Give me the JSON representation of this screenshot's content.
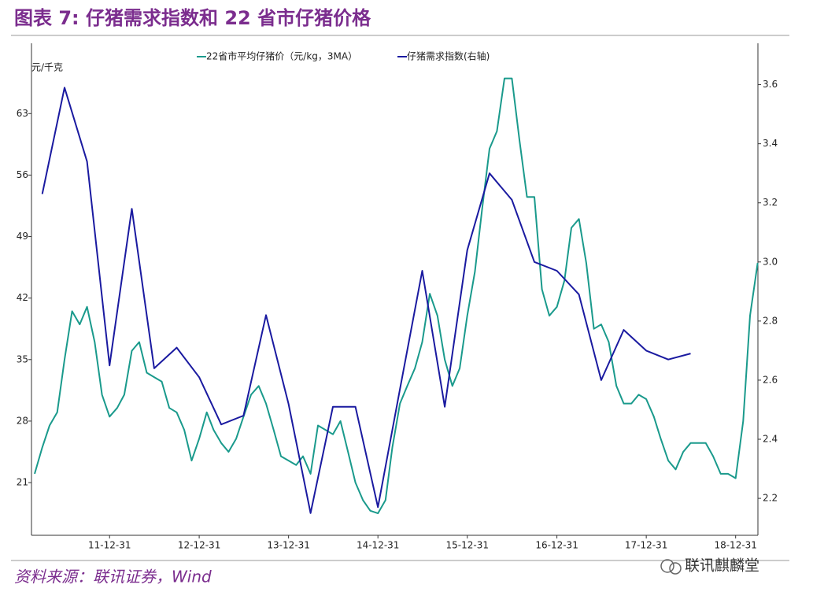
{
  "chart_data": {
    "type": "line",
    "title": "图表 7: 仔猪需求指数和 22 省市仔猪价格",
    "y_label": "元/千克",
    "source": "资料来源：联讯证券，Wind",
    "watermark": "联讯麒麟堂",
    "xlim": [
      "11-02-15",
      "19-04-01"
    ],
    "xticks": [
      "11-12-31",
      "12-12-31",
      "13-12-31",
      "14-12-31",
      "15-12-31",
      "16-12-31",
      "17-12-31",
      "18-12-31"
    ],
    "ylim": [
      15,
      71
    ],
    "yticks": [
      21,
      28,
      35,
      42,
      49,
      56,
      63
    ],
    "y2lim": [
      2.075,
      3.74
    ],
    "y2ticks": [
      2.2,
      2.4,
      2.6,
      2.8,
      {
        "value": 3,
        "label": "3.0"
      },
      3.2,
      3.4,
      3.6
    ],
    "grid": false,
    "legend": "top",
    "series": [
      {
        "name": "22省市平均仔猪价（元/kg，3MA）",
        "color": "#1a9a8c",
        "x": [
          "11-02-28",
          "11-03-31",
          "11-04-30",
          "11-05-31",
          "11-06-30",
          "11-07-31",
          "11-08-31",
          "11-09-30",
          "11-10-31",
          "11-11-30",
          "11-12-31",
          "12-01-31",
          "12-02-29",
          "12-03-31",
          "12-04-30",
          "12-05-31",
          "12-06-30",
          "12-07-31",
          "12-08-31",
          "12-09-30",
          "12-10-31",
          "12-11-30",
          "12-12-31",
          "13-01-31",
          "13-02-28",
          "13-03-31",
          "13-04-30",
          "13-05-31",
          "13-06-30",
          "13-07-31",
          "13-08-31",
          "13-09-30",
          "13-10-31",
          "13-11-30",
          "13-12-31",
          "14-01-31",
          "14-02-28",
          "14-03-31",
          "14-04-30",
          "14-05-31",
          "14-06-30",
          "14-07-31",
          "14-08-31",
          "14-09-30",
          "14-10-31",
          "14-11-30",
          "14-12-31",
          "15-01-31",
          "15-02-28",
          "15-03-31",
          "15-04-30",
          "15-05-31",
          "15-06-30",
          "15-07-31",
          "15-08-31",
          "15-09-30",
          "15-10-31",
          "15-11-30",
          "15-12-31",
          "16-01-31",
          "16-02-29",
          "16-03-31",
          "16-04-30",
          "16-05-31",
          "16-06-30",
          "16-07-31",
          "16-08-31",
          "16-09-30",
          "16-10-31",
          "16-11-30",
          "16-12-31",
          "17-01-31",
          "17-02-28",
          "17-03-31",
          "17-04-30",
          "17-05-31",
          "17-06-30",
          "17-07-31",
          "17-08-31",
          "17-09-30",
          "17-10-31",
          "17-11-30",
          "17-12-31",
          "18-01-31",
          "18-02-28",
          "18-03-31",
          "18-04-30",
          "18-05-31",
          "18-06-30",
          "18-07-31",
          "18-08-31",
          "18-09-30",
          "18-10-31",
          "18-11-30",
          "18-12-31",
          "19-01-31",
          "19-02-28",
          "19-03-31"
        ],
        "values": [
          22,
          25,
          27.5,
          29,
          35,
          40.5,
          39,
          41,
          37,
          31,
          28.5,
          29.5,
          31,
          36,
          37,
          33.5,
          33,
          32.5,
          29.5,
          29,
          27,
          23.5,
          26,
          29,
          27,
          25.5,
          24.5,
          26,
          28.5,
          31,
          32,
          30,
          27,
          24,
          23.5,
          23,
          24,
          22,
          27.5,
          27,
          26.5,
          28,
          24.5,
          21,
          19,
          17.8,
          17.5,
          19,
          25,
          30,
          32,
          34,
          37,
          42.5,
          40,
          35,
          32,
          34,
          40,
          45,
          52,
          59,
          61,
          67,
          67,
          60,
          53.5,
          53.5,
          43,
          40,
          41,
          44,
          50,
          51,
          46,
          38.5,
          39,
          37,
          32,
          30,
          30,
          31,
          30.5,
          28.5,
          26,
          23.5,
          22.5,
          24.5,
          25.5,
          25.5,
          25.5,
          24,
          22,
          22,
          21.5,
          28,
          40,
          46
        ]
      },
      {
        "name": "仔猪需求指数(右轴)",
        "color": "#1a1aa0",
        "axis": "y2",
        "x": [
          "11-03-31",
          "11-06-30",
          "11-09-30",
          "11-12-31",
          "12-03-31",
          "12-06-30",
          "12-09-30",
          "12-12-31",
          "13-03-31",
          "13-06-30",
          "13-09-30",
          "13-12-31",
          "14-03-31",
          "14-06-30",
          "14-09-30",
          "14-12-31",
          "15-03-31",
          "15-06-30",
          "15-09-30",
          "15-12-31",
          "16-03-31",
          "16-06-30",
          "16-09-30",
          "16-12-31",
          "17-03-31",
          "17-06-30",
          "17-09-30",
          "17-12-31",
          "18-03-31",
          "18-06-30"
        ],
        "values": [
          3.23,
          3.59,
          3.34,
          2.65,
          3.18,
          2.64,
          2.71,
          2.61,
          2.45,
          2.48,
          2.82,
          2.52,
          2.15,
          2.51,
          2.51,
          2.17,
          2.57,
          2.97,
          2.51,
          3.04,
          3.3,
          3.21,
          3.0,
          2.97,
          2.89,
          2.6,
          2.77,
          2.7,
          2.67,
          2.69
        ]
      }
    ]
  }
}
